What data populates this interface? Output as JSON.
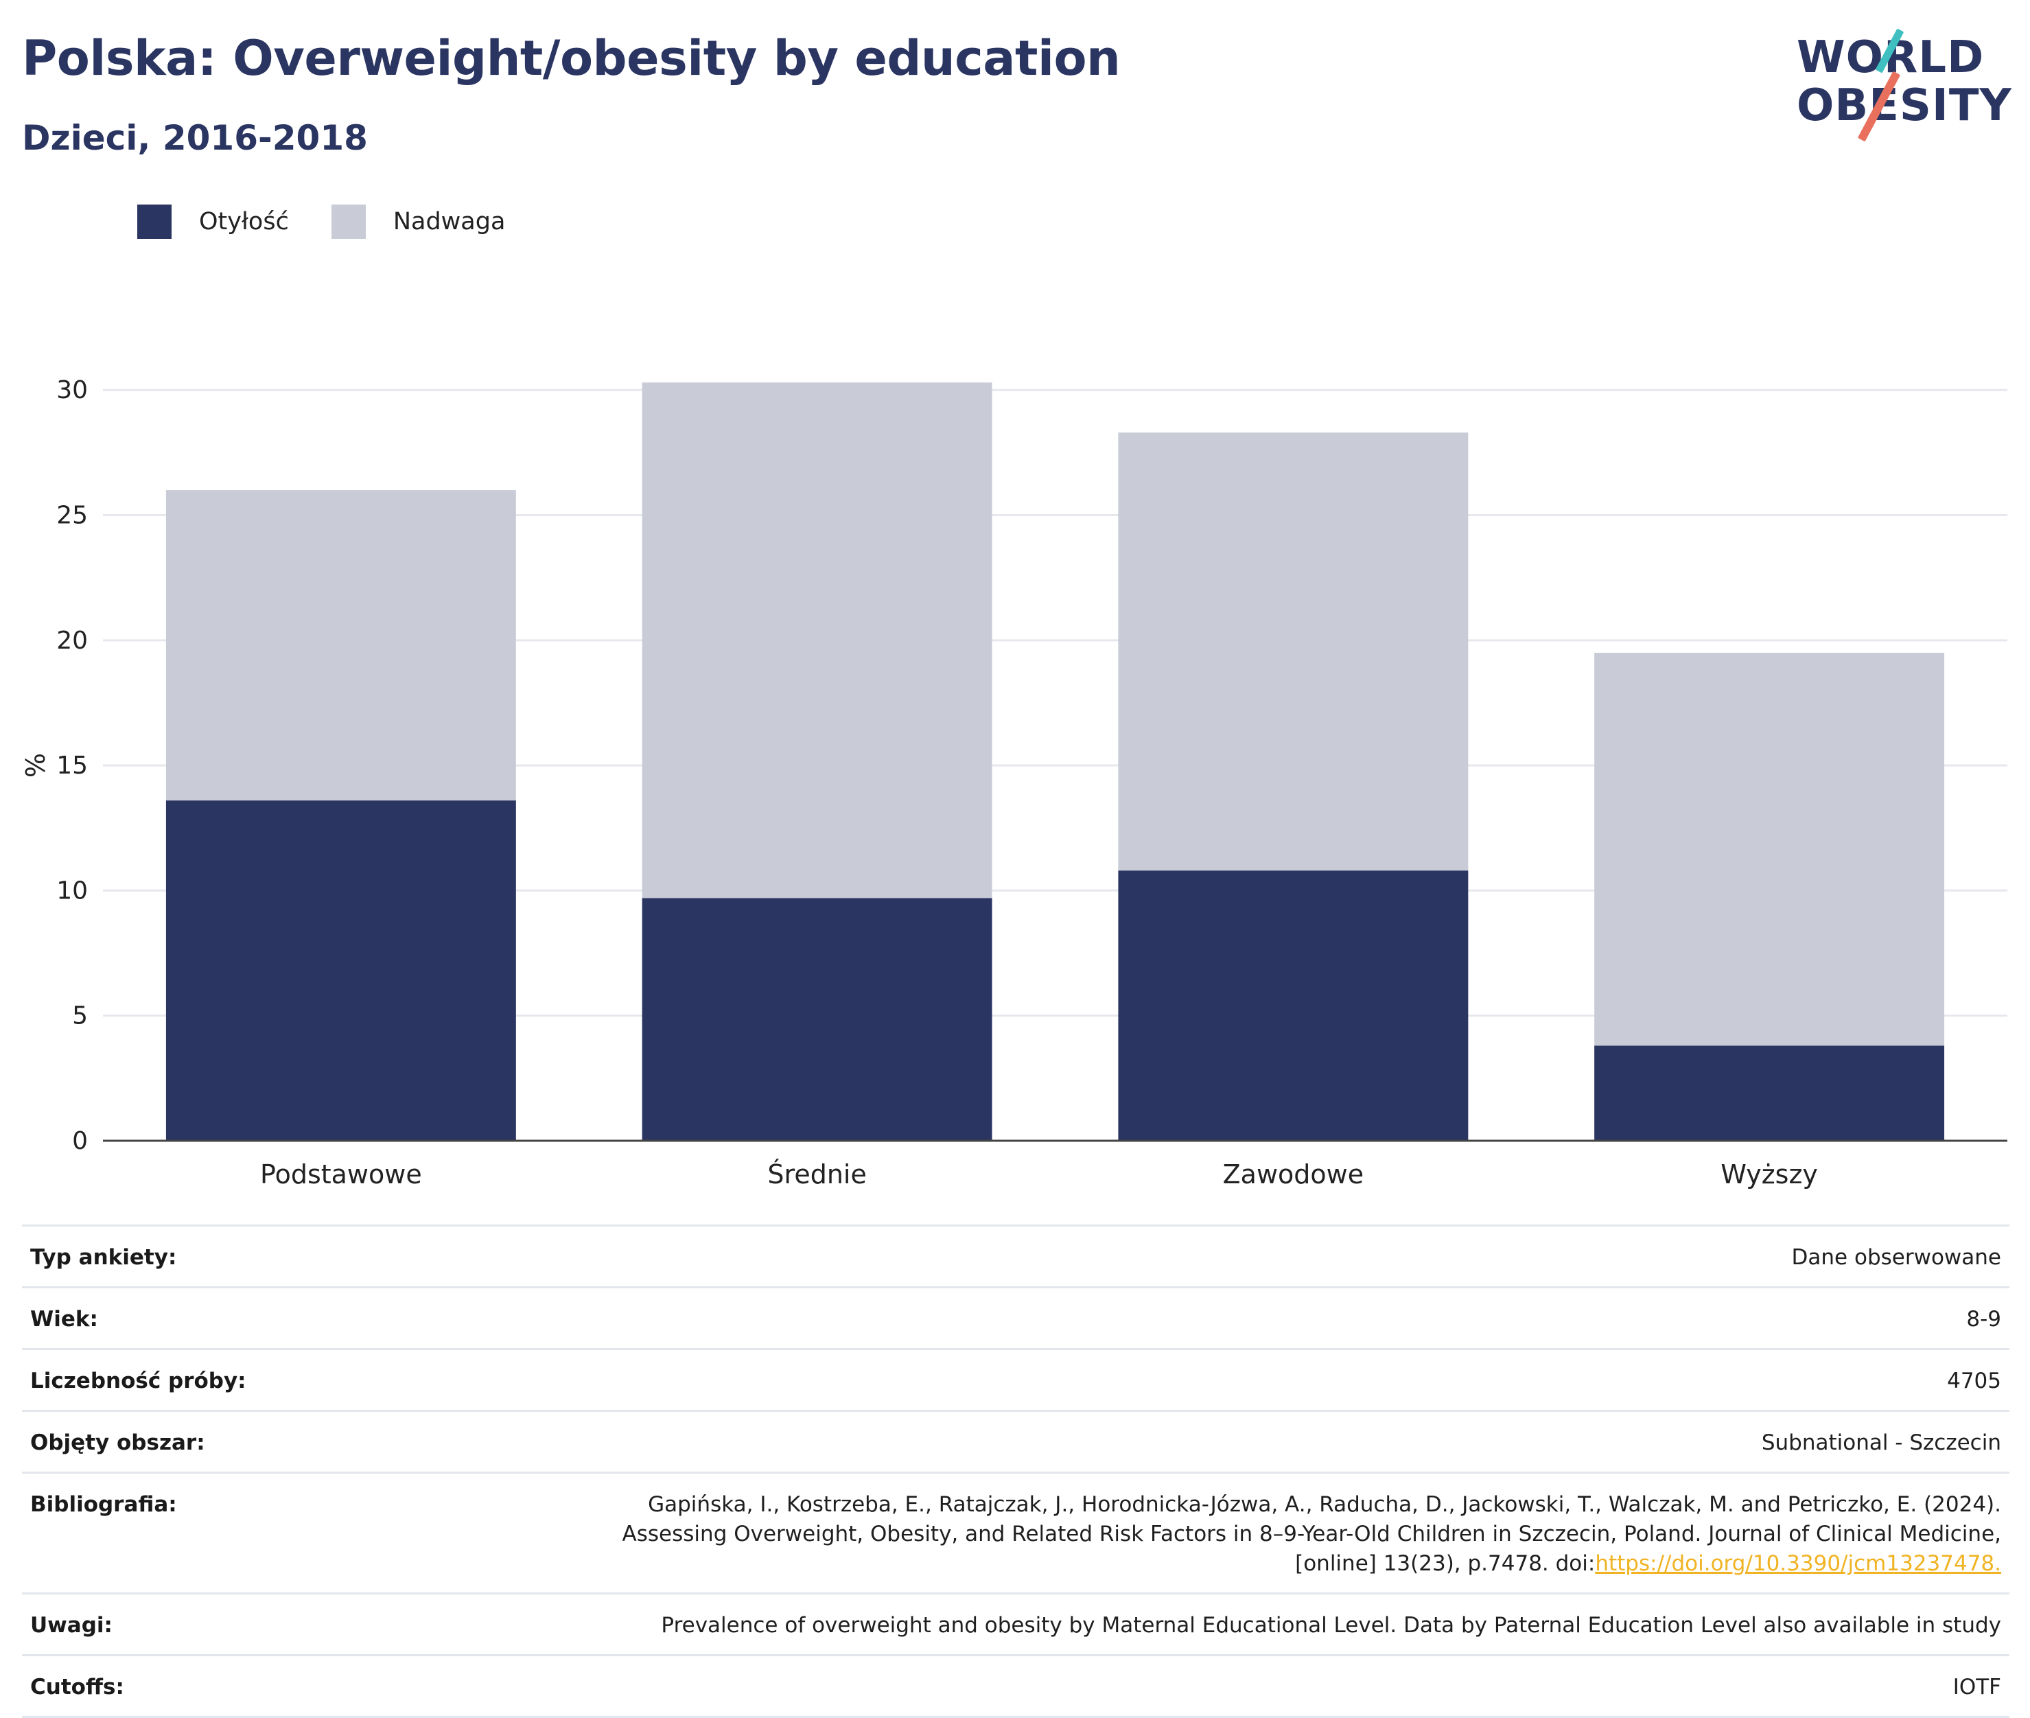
{
  "header": {
    "title": "Polska: Overweight/obesity by education",
    "subtitle": "Dzieci, 2016-2018",
    "logo_line1": "WORLD",
    "logo_line2": "OBESITY"
  },
  "colors": {
    "obesity": "#2a3562",
    "overweight": "#c9ccd7",
    "title": "#2a3562",
    "link": "#f0b323",
    "logo_teal": "#3fbfbf",
    "logo_coral": "#e8705c"
  },
  "chart_data": {
    "type": "bar",
    "stacked": true,
    "categories": [
      "Podstawowe",
      "Średnie",
      "Zawodowe",
      "Wyższy"
    ],
    "series": [
      {
        "name": "Otyłość",
        "values": [
          13.6,
          9.7,
          10.8,
          3.8
        ]
      },
      {
        "name": "Nadwaga",
        "values": [
          12.4,
          20.6,
          17.5,
          15.7
        ]
      }
    ],
    "totals": [
      26.0,
      30.3,
      28.3,
      19.5
    ],
    "ylabel": "%",
    "ylim": [
      0,
      30.5
    ],
    "yticks": [
      0,
      5,
      10,
      15,
      20,
      25,
      30
    ],
    "grid": true,
    "legend_position": "top-left"
  },
  "info": [
    {
      "key": "Typ ankiety:",
      "value": "Dane obserwowane"
    },
    {
      "key": "Wiek:",
      "value": "8-9"
    },
    {
      "key": "Liczebność próby:",
      "value": "4705"
    },
    {
      "key": "Objęty obszar:",
      "value": "Subnational - Szczecin"
    },
    {
      "key": "Bibliografia:",
      "value": "Gapińska, I., Kostrzeba, E., Ratajczak, J., Horodnicka-Józwa, A., Raducha, D., Jackowski, T., Walczak, M. and Petriczko, E. (2024). Assessing Overweight, Obesity, and Related Risk Factors in 8–9-Year-Old Children in Szczecin, Poland. Journal of Clinical Medicine, [online] 13(23), p.7478. doi:",
      "link": "https://doi.org/10.3390/jcm13237478."
    },
    {
      "key": "Uwagi:",
      "value": "Prevalence of overweight and obesity by Maternal Educational Level. Data by Paternal Education Level also available in study"
    },
    {
      "key": "Cutoffs:",
      "value": "IOTF"
    }
  ]
}
